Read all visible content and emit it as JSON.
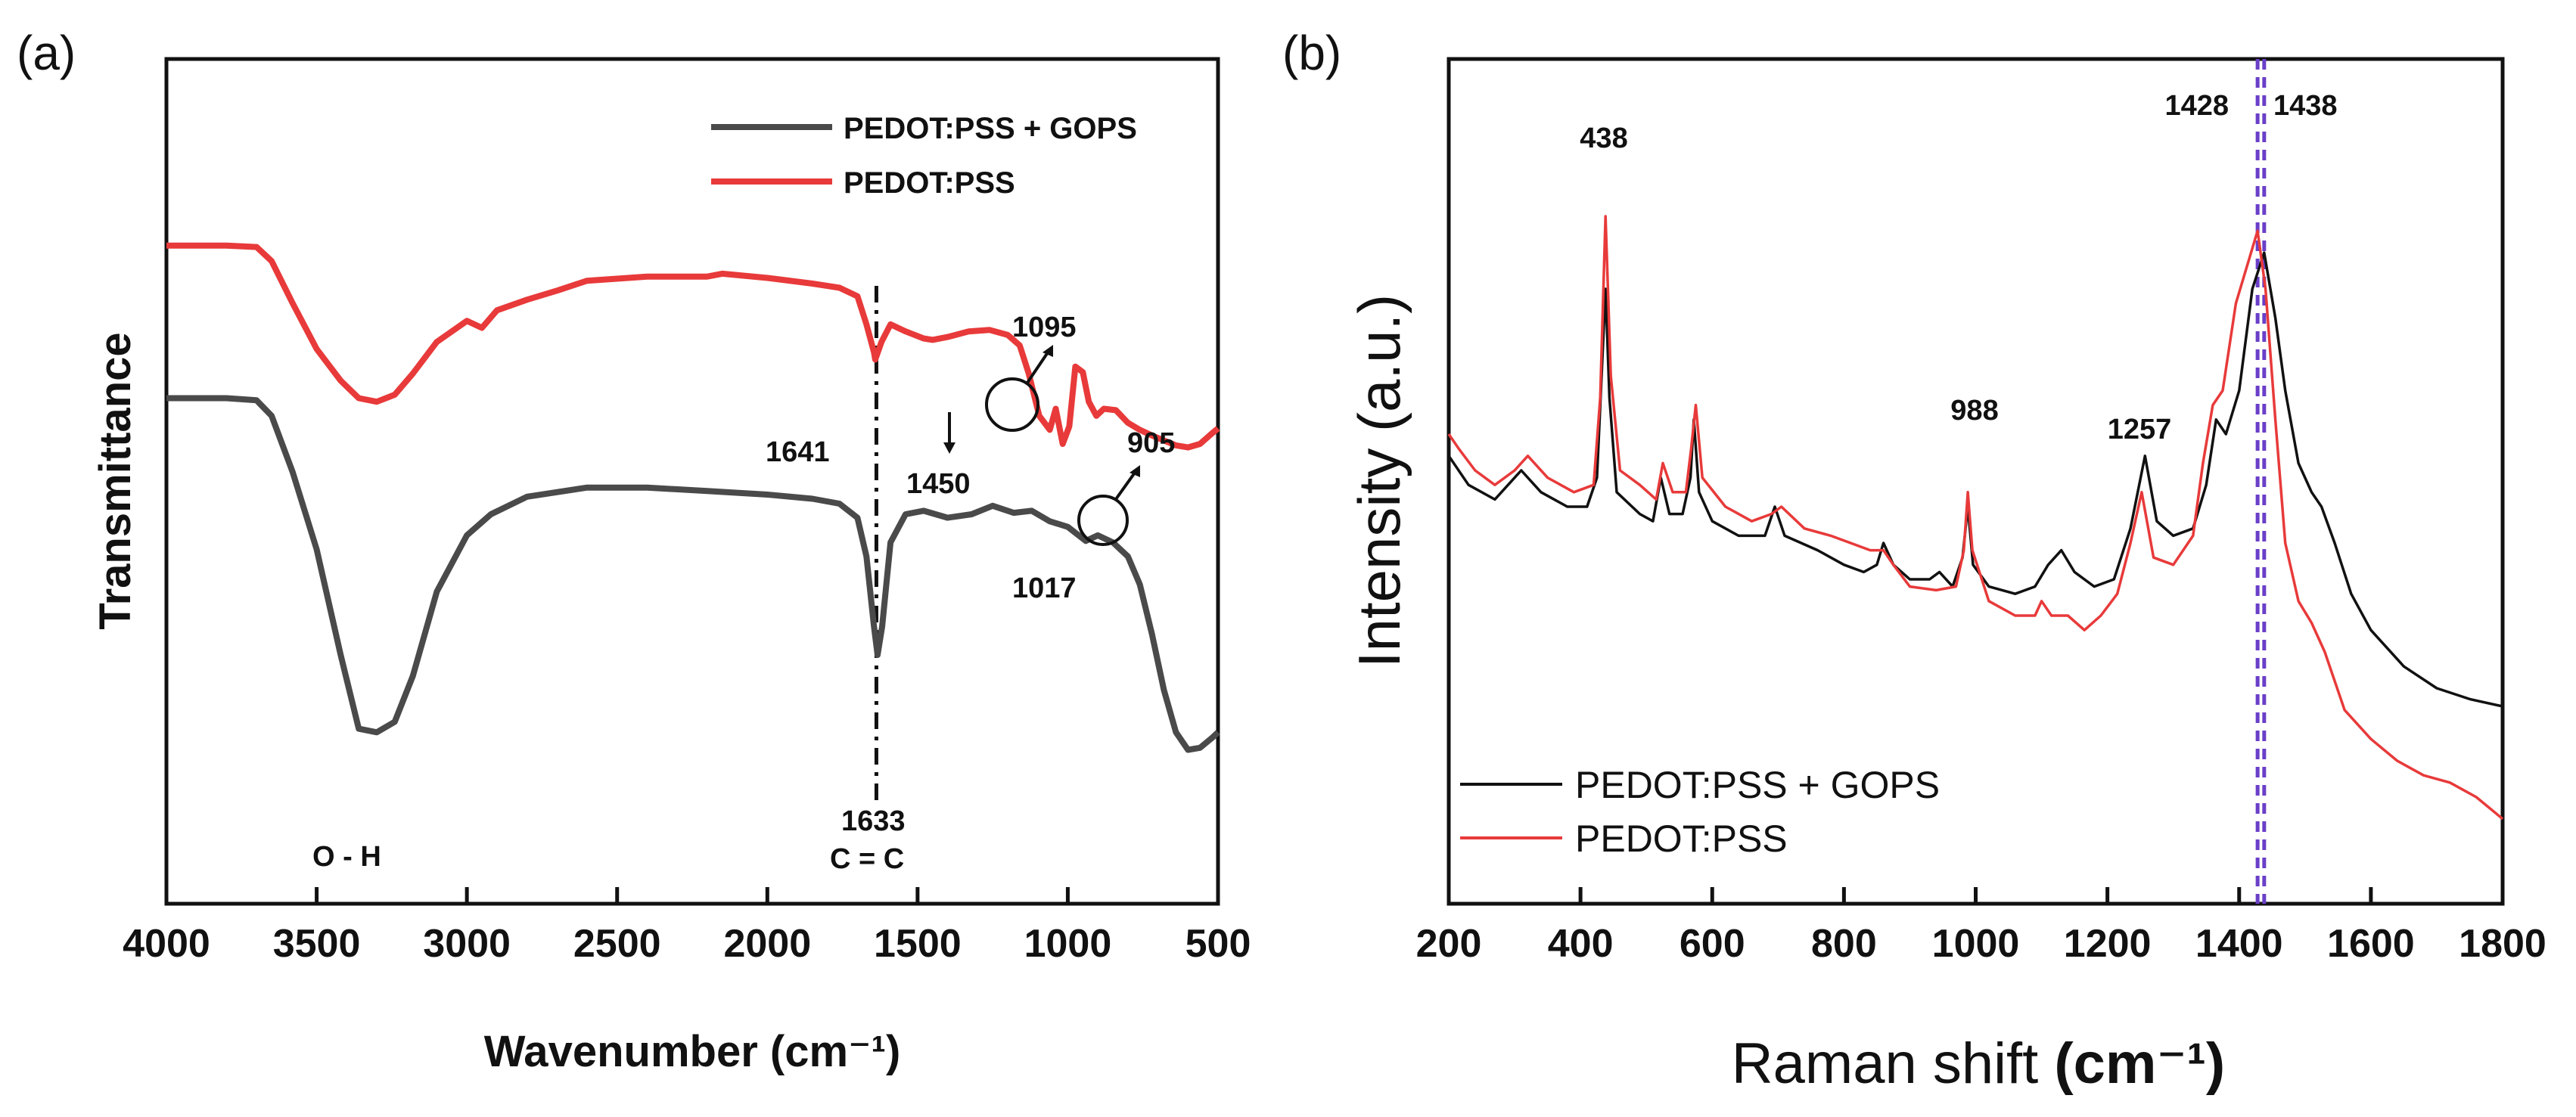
{
  "colors": {
    "gops": "#4a4a4a",
    "gops_b": "#111111",
    "pss": "#e83a3a",
    "dashed": "#6a3fc8",
    "axis": "#111111"
  },
  "chart_data": [
    {
      "type": "line",
      "panel_label": "(a)",
      "title": "",
      "xlabel": "Wavenumber",
      "xlabel_unit": "(cm⁻¹)",
      "ylabel": "Transmittance",
      "xlim": [
        4000,
        500
      ],
      "x_reversed": true,
      "ylim": [
        0,
        1
      ],
      "y_ticks_shown": false,
      "x_ticks": [
        "4000",
        "3500",
        "3000",
        "2500",
        "2000",
        "1500",
        "1000",
        "500"
      ],
      "legend_position": "top-right",
      "series": [
        {
          "name": "PEDOT:PSS + GOPS",
          "color_key": "gops",
          "points": [
            [
              4000,
              0.665
            ],
            [
              3800,
              0.665
            ],
            [
              3700,
              0.662
            ],
            [
              3650,
              0.64
            ],
            [
              3580,
              0.56
            ],
            [
              3500,
              0.45
            ],
            [
              3420,
              0.3
            ],
            [
              3360,
              0.195
            ],
            [
              3300,
              0.19
            ],
            [
              3240,
              0.205
            ],
            [
              3180,
              0.27
            ],
            [
              3100,
              0.39
            ],
            [
              3000,
              0.47
            ],
            [
              2920,
              0.5
            ],
            [
              2800,
              0.525
            ],
            [
              2600,
              0.538
            ],
            [
              2400,
              0.538
            ],
            [
              2200,
              0.533
            ],
            [
              2000,
              0.528
            ],
            [
              1850,
              0.522
            ],
            [
              1760,
              0.515
            ],
            [
              1700,
              0.495
            ],
            [
              1670,
              0.44
            ],
            [
              1645,
              0.34
            ],
            [
              1633,
              0.3
            ],
            [
              1618,
              0.34
            ],
            [
              1590,
              0.46
            ],
            [
              1540,
              0.5
            ],
            [
              1480,
              0.505
            ],
            [
              1400,
              0.495
            ],
            [
              1320,
              0.5
            ],
            [
              1250,
              0.512
            ],
            [
              1180,
              0.502
            ],
            [
              1120,
              0.505
            ],
            [
              1060,
              0.49
            ],
            [
              1000,
              0.482
            ],
            [
              940,
              0.462
            ],
            [
              900,
              0.47
            ],
            [
              850,
              0.46
            ],
            [
              800,
              0.44
            ],
            [
              760,
              0.4
            ],
            [
              720,
              0.33
            ],
            [
              680,
              0.25
            ],
            [
              640,
              0.19
            ],
            [
              600,
              0.165
            ],
            [
              560,
              0.168
            ],
            [
              520,
              0.182
            ],
            [
              500,
              0.19
            ]
          ]
        },
        {
          "name": "PEDOT:PSS",
          "color_key": "pss",
          "points": [
            [
              4000,
              0.882
            ],
            [
              3800,
              0.882
            ],
            [
              3700,
              0.88
            ],
            [
              3650,
              0.86
            ],
            [
              3580,
              0.8
            ],
            [
              3500,
              0.735
            ],
            [
              3420,
              0.69
            ],
            [
              3360,
              0.665
            ],
            [
              3300,
              0.66
            ],
            [
              3240,
              0.67
            ],
            [
              3180,
              0.7
            ],
            [
              3100,
              0.745
            ],
            [
              3000,
              0.775
            ],
            [
              2950,
              0.765
            ],
            [
              2900,
              0.79
            ],
            [
              2800,
              0.805
            ],
            [
              2700,
              0.818
            ],
            [
              2600,
              0.832
            ],
            [
              2400,
              0.838
            ],
            [
              2200,
              0.838
            ],
            [
              2150,
              0.842
            ],
            [
              2000,
              0.836
            ],
            [
              1850,
              0.828
            ],
            [
              1760,
              0.822
            ],
            [
              1700,
              0.81
            ],
            [
              1670,
              0.77
            ],
            [
              1645,
              0.73
            ],
            [
              1641,
              0.72
            ],
            [
              1620,
              0.745
            ],
            [
              1590,
              0.77
            ],
            [
              1540,
              0.76
            ],
            [
              1480,
              0.75
            ],
            [
              1450,
              0.748
            ],
            [
              1400,
              0.752
            ],
            [
              1330,
              0.76
            ],
            [
              1260,
              0.762
            ],
            [
              1200,
              0.755
            ],
            [
              1160,
              0.74
            ],
            [
              1130,
              0.7
            ],
            [
              1095,
              0.64
            ],
            [
              1060,
              0.62
            ],
            [
              1040,
              0.65
            ],
            [
              1017,
              0.6
            ],
            [
              995,
              0.625
            ],
            [
              975,
              0.71
            ],
            [
              950,
              0.702
            ],
            [
              930,
              0.66
            ],
            [
              905,
              0.64
            ],
            [
              880,
              0.65
            ],
            [
              840,
              0.648
            ],
            [
              800,
              0.63
            ],
            [
              760,
              0.62
            ],
            [
              720,
              0.612
            ],
            [
              680,
              0.605
            ],
            [
              640,
              0.598
            ],
            [
              600,
              0.595
            ],
            [
              560,
              0.6
            ],
            [
              520,
              0.615
            ],
            [
              500,
              0.622
            ]
          ]
        }
      ],
      "annotations": [
        {
          "text": "1641",
          "x": 1641
        },
        {
          "text": "1450",
          "x": 1450
        },
        {
          "text": "1095",
          "x": 1095
        },
        {
          "text": "905",
          "x": 905
        },
        {
          "text": "1017",
          "x": 1017
        },
        {
          "text": "1633",
          "x": 1633
        },
        {
          "text": "C = C",
          "x": 1633
        },
        {
          "text": "O - H",
          "x": 3300
        }
      ]
    },
    {
      "type": "line",
      "panel_label": "(b)",
      "title": "",
      "xlabel": "Raman shift",
      "xlabel_unit": "(cm⁻¹)",
      "ylabel": "Intensity (a.u.)",
      "xlim": [
        200,
        1800
      ],
      "ylim": [
        0,
        1
      ],
      "y_ticks_shown": false,
      "x_ticks": [
        "200",
        "400",
        "600",
        "800",
        "1000",
        "1200",
        "1400",
        "1600",
        "1800"
      ],
      "legend_position": "bottom-left",
      "reference_lines": [
        1428,
        1438
      ],
      "series": [
        {
          "name": "PEDOT:PSS + GOPS",
          "color_key": "gops_b",
          "points": [
            [
              200,
              0.57
            ],
            [
              230,
              0.53
            ],
            [
              270,
              0.51
            ],
            [
              310,
              0.55
            ],
            [
              340,
              0.52
            ],
            [
              380,
              0.5
            ],
            [
              410,
              0.5
            ],
            [
              425,
              0.54
            ],
            [
              432,
              0.68
            ],
            [
              438,
              0.8
            ],
            [
              444,
              0.65
            ],
            [
              455,
              0.52
            ],
            [
              490,
              0.49
            ],
            [
              510,
              0.48
            ],
            [
              522,
              0.54
            ],
            [
              535,
              0.49
            ],
            [
              555,
              0.49
            ],
            [
              567,
              0.54
            ],
            [
              572,
              0.62
            ],
            [
              580,
              0.52
            ],
            [
              600,
              0.48
            ],
            [
              640,
              0.46
            ],
            [
              680,
              0.46
            ],
            [
              695,
              0.5
            ],
            [
              710,
              0.46
            ],
            [
              760,
              0.44
            ],
            [
              800,
              0.42
            ],
            [
              830,
              0.41
            ],
            [
              850,
              0.42
            ],
            [
              860,
              0.45
            ],
            [
              875,
              0.42
            ],
            [
              900,
              0.4
            ],
            [
              930,
              0.4
            ],
            [
              945,
              0.41
            ],
            [
              965,
              0.39
            ],
            [
              980,
              0.43
            ],
            [
              988,
              0.5
            ],
            [
              996,
              0.42
            ],
            [
              1020,
              0.39
            ],
            [
              1060,
              0.38
            ],
            [
              1090,
              0.39
            ],
            [
              1110,
              0.42
            ],
            [
              1130,
              0.44
            ],
            [
              1150,
              0.41
            ],
            [
              1180,
              0.39
            ],
            [
              1210,
              0.4
            ],
            [
              1235,
              0.47
            ],
            [
              1257,
              0.57
            ],
            [
              1275,
              0.48
            ],
            [
              1300,
              0.46
            ],
            [
              1330,
              0.47
            ],
            [
              1350,
              0.53
            ],
            [
              1365,
              0.62
            ],
            [
              1380,
              0.6
            ],
            [
              1400,
              0.66
            ],
            [
              1420,
              0.8
            ],
            [
              1438,
              0.85
            ],
            [
              1455,
              0.76
            ],
            [
              1470,
              0.66
            ],
            [
              1490,
              0.56
            ],
            [
              1510,
              0.52
            ],
            [
              1525,
              0.5
            ],
            [
              1545,
              0.45
            ],
            [
              1570,
              0.38
            ],
            [
              1600,
              0.33
            ],
            [
              1650,
              0.28
            ],
            [
              1700,
              0.25
            ],
            [
              1750,
              0.235
            ],
            [
              1800,
              0.225
            ]
          ]
        },
        {
          "name": "PEDOT:PSS",
          "color_key": "pss",
          "points": [
            [
              200,
              0.6
            ],
            [
              215,
              0.58
            ],
            [
              240,
              0.55
            ],
            [
              270,
              0.53
            ],
            [
              300,
              0.55
            ],
            [
              320,
              0.57
            ],
            [
              350,
              0.54
            ],
            [
              390,
              0.52
            ],
            [
              420,
              0.53
            ],
            [
              430,
              0.65
            ],
            [
              438,
              0.9
            ],
            [
              446,
              0.68
            ],
            [
              460,
              0.55
            ],
            [
              490,
              0.53
            ],
            [
              515,
              0.51
            ],
            [
              525,
              0.56
            ],
            [
              540,
              0.52
            ],
            [
              560,
              0.52
            ],
            [
              568,
              0.58
            ],
            [
              575,
              0.64
            ],
            [
              585,
              0.54
            ],
            [
              620,
              0.5
            ],
            [
              660,
              0.48
            ],
            [
              690,
              0.49
            ],
            [
              705,
              0.5
            ],
            [
              740,
              0.47
            ],
            [
              780,
              0.46
            ],
            [
              810,
              0.45
            ],
            [
              840,
              0.44
            ],
            [
              860,
              0.44
            ],
            [
              875,
              0.42
            ],
            [
              900,
              0.39
            ],
            [
              940,
              0.385
            ],
            [
              970,
              0.39
            ],
            [
              982,
              0.44
            ],
            [
              988,
              0.52
            ],
            [
              995,
              0.44
            ],
            [
              1020,
              0.37
            ],
            [
              1060,
              0.35
            ],
            [
              1090,
              0.35
            ],
            [
              1100,
              0.37
            ],
            [
              1115,
              0.35
            ],
            [
              1140,
              0.35
            ],
            [
              1165,
              0.33
            ],
            [
              1190,
              0.35
            ],
            [
              1215,
              0.38
            ],
            [
              1235,
              0.45
            ],
            [
              1252,
              0.52
            ],
            [
              1270,
              0.43
            ],
            [
              1300,
              0.42
            ],
            [
              1330,
              0.46
            ],
            [
              1345,
              0.56
            ],
            [
              1360,
              0.64
            ],
            [
              1375,
              0.66
            ],
            [
              1395,
              0.78
            ],
            [
              1428,
              0.88
            ],
            [
              1440,
              0.8
            ],
            [
              1455,
              0.62
            ],
            [
              1470,
              0.45
            ],
            [
              1490,
              0.37
            ],
            [
              1510,
              0.34
            ],
            [
              1530,
              0.3
            ],
            [
              1560,
              0.22
            ],
            [
              1600,
              0.18
            ],
            [
              1640,
              0.15
            ],
            [
              1680,
              0.13
            ],
            [
              1720,
              0.12
            ],
            [
              1760,
              0.1
            ],
            [
              1800,
              0.07
            ]
          ]
        }
      ],
      "annotations": [
        {
          "text": "438",
          "x": 438
        },
        {
          "text": "988",
          "x": 988
        },
        {
          "text": "1257",
          "x": 1257
        },
        {
          "text": "1428",
          "x": 1428
        },
        {
          "text": "1438",
          "x": 1438
        }
      ]
    }
  ]
}
